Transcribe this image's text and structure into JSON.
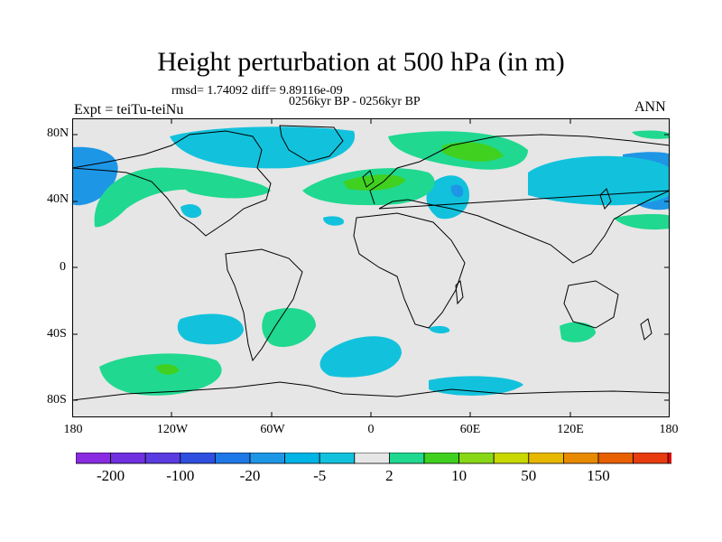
{
  "title": "Height perturbation at 500 hPa (in m)",
  "stats_line": "rmsd= 1.74092 diff= 9.89116e-09",
  "period_line": "0256kyr BP - 0256kyr BP",
  "experiment": "Expt = teiTu-teiNu",
  "season": "ANN",
  "map": {
    "projection": "cylindrical equidistant",
    "lon_range": [
      -180,
      180
    ],
    "lat_range": [
      -90,
      90
    ],
    "lat_labels": [
      "80N",
      "40N",
      "0",
      "40S",
      "80S"
    ],
    "lon_labels": [
      "180",
      "120W",
      "60W",
      "0",
      "60E",
      "120E",
      "180"
    ],
    "background_color": "#e6e6e6"
  },
  "colorbar": {
    "colors": [
      "#8a2be2",
      "#7030e0",
      "#5a3ce0",
      "#2f4fe0",
      "#1e78e8",
      "#1e96e6",
      "#00b4e6",
      "#12c2dc",
      "#e6e6e6",
      "#20d890",
      "#40d020",
      "#88d818",
      "#c8d800",
      "#e8b800",
      "#e88a00",
      "#e86000",
      "#e83c10",
      "#e80000"
    ],
    "tick_labels": [
      "-200",
      "-100",
      "-20",
      "-5",
      "2",
      "10",
      "50",
      "150"
    ]
  }
}
